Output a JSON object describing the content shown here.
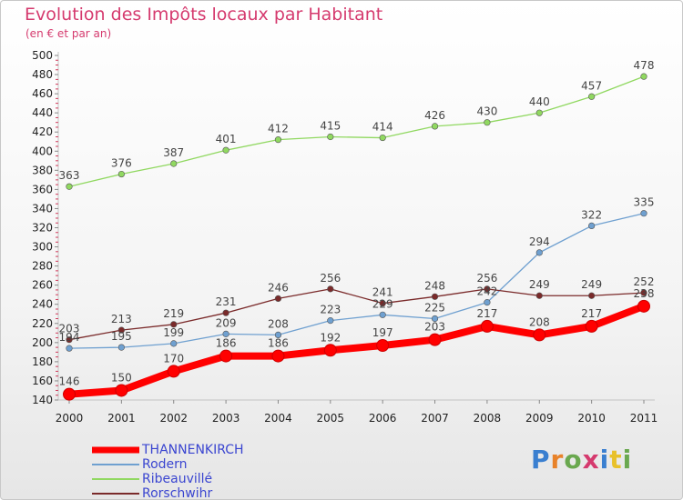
{
  "title": "Evolution des Impôts locaux par Habitant",
  "subtitle": "(en € et par an)",
  "logo": {
    "text": "Proxiti",
    "letters": [
      {
        "ch": "P",
        "color": "#3a7fd0"
      },
      {
        "ch": "r",
        "color": "#e8822a"
      },
      {
        "ch": "o",
        "color": "#6aa84f"
      },
      {
        "ch": "x",
        "color": "#d53a6e"
      },
      {
        "ch": "i",
        "color": "#3a7fd0"
      },
      {
        "ch": "t",
        "color": "#e8c12a"
      },
      {
        "ch": "i",
        "color": "#6aa84f"
      }
    ]
  },
  "chart_data": {
    "type": "line",
    "title": "Evolution des Impôts locaux par Habitant",
    "subtitle": "(en € et par an)",
    "xlabel": "",
    "ylabel": "",
    "x": [
      "2000",
      "2001",
      "2002",
      "2003",
      "2004",
      "2005",
      "2006",
      "2007",
      "2008",
      "2009",
      "2010",
      "2011"
    ],
    "ylim": [
      140,
      500
    ],
    "yticks": [
      140,
      160,
      180,
      200,
      220,
      240,
      260,
      280,
      300,
      320,
      340,
      360,
      380,
      400,
      420,
      440,
      460,
      480,
      500
    ],
    "grid": false,
    "legend_position": "bottom-left",
    "series": [
      {
        "name": "THANNENKIRCH",
        "color": "#ff0000",
        "values": [
          146,
          150,
          170,
          186,
          186,
          192,
          197,
          203,
          217,
          208,
          217,
          238
        ]
      },
      {
        "name": "Rodern",
        "color": "#6fa0d0",
        "values": [
          194,
          195,
          199,
          209,
          208,
          223,
          229,
          225,
          242,
          294,
          322,
          335
        ]
      },
      {
        "name": "Ribeauvillé",
        "color": "#90d860",
        "values": [
          363,
          376,
          387,
          401,
          412,
          415,
          414,
          426,
          430,
          440,
          457,
          478
        ]
      },
      {
        "name": "Rorschwihr",
        "color": "#7a2a2a",
        "values": [
          203,
          213,
          219,
          231,
          246,
          256,
          241,
          248,
          256,
          249,
          249,
          252
        ]
      }
    ]
  }
}
